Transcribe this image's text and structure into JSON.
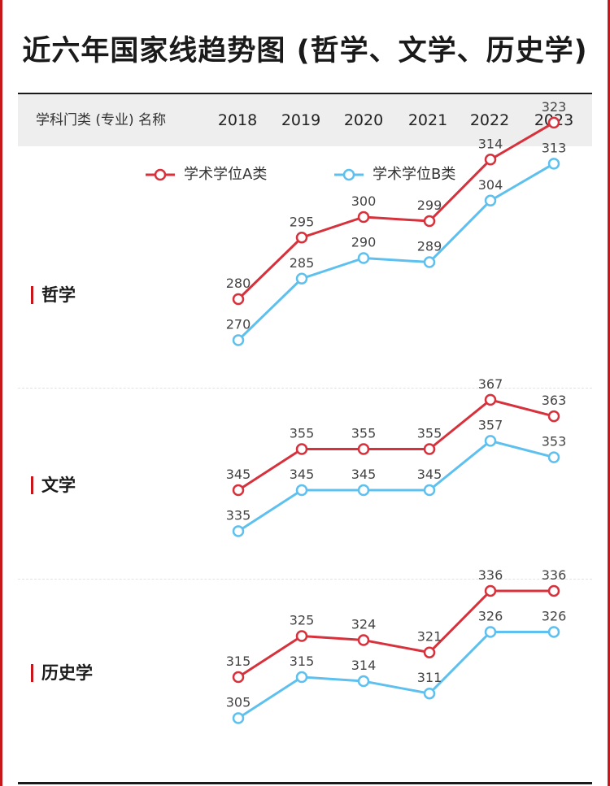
{
  "title": "近六年国家线趋势图 (哲学、文学、历史学)",
  "header": {
    "name_col": "学科门类 (专业) 名称",
    "years": [
      "2018",
      "2019",
      "2020",
      "2021",
      "2022",
      "2023"
    ]
  },
  "legend": {
    "a": "学术学位A类",
    "b": "学术学位B类"
  },
  "colors": {
    "a": "#d7313c",
    "b": "#5ec0ee",
    "accent": "#c8161d"
  },
  "chart_data": [
    {
      "type": "line",
      "label": "哲学",
      "x": [
        "2018",
        "2019",
        "2020",
        "2021",
        "2022",
        "2023"
      ],
      "series": [
        {
          "name": "学术学位A类",
          "values": [
            280,
            295,
            300,
            299,
            314,
            323
          ]
        },
        {
          "name": "学术学位B类",
          "values": [
            270,
            285,
            290,
            289,
            304,
            313
          ]
        }
      ]
    },
    {
      "type": "line",
      "label": "文学",
      "x": [
        "2018",
        "2019",
        "2020",
        "2021",
        "2022",
        "2023"
      ],
      "series": [
        {
          "name": "学术学位A类",
          "values": [
            345,
            355,
            355,
            355,
            367,
            363
          ]
        },
        {
          "name": "学术学位B类",
          "values": [
            335,
            345,
            345,
            345,
            357,
            353
          ]
        }
      ]
    },
    {
      "type": "line",
      "label": "历史学",
      "x": [
        "2018",
        "2019",
        "2020",
        "2021",
        "2022",
        "2023"
      ],
      "series": [
        {
          "name": "学术学位A类",
          "values": [
            315,
            325,
            324,
            321,
            336,
            336
          ]
        },
        {
          "name": "学术学位B类",
          "values": [
            305,
            315,
            314,
            311,
            326,
            326
          ]
        }
      ]
    }
  ]
}
